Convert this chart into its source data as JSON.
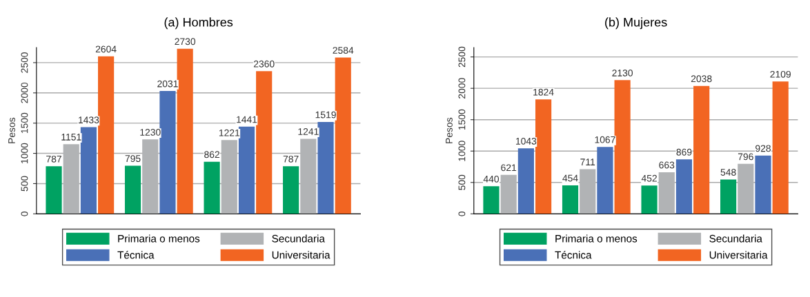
{
  "chart_data": [
    {
      "type": "bar",
      "title": "(a) Hombres",
      "ylabel": "Pesos",
      "categories": [
        null,
        null,
        null,
        null
      ],
      "series": [
        {
          "name": "Primaria o menos",
          "color": "#00a262",
          "values": [
            787,
            795,
            862,
            787
          ]
        },
        {
          "name": "Secundaria",
          "color": "#b1b3b5",
          "values": [
            1151,
            1230,
            1221,
            1241
          ]
        },
        {
          "name": "Técnica",
          "color": "#4a70b7",
          "values": [
            1433,
            2031,
            1441,
            1519
          ]
        },
        {
          "name": "Universitaria",
          "color": "#f26522",
          "values": [
            2604,
            2730,
            2360,
            2584
          ]
        }
      ],
      "ylim": [
        0,
        2750
      ],
      "yticks": [
        0,
        500,
        1000,
        1500,
        2000,
        2500
      ],
      "tick_labels": "y",
      "grid": "y",
      "legend": "bottom",
      "data_labels": true
    },
    {
      "type": "bar",
      "title": "(b) Mujeres",
      "ylabel": "Pesos",
      "categories": [
        null,
        null,
        null,
        null
      ],
      "series": [
        {
          "name": "Primaria o menos",
          "color": "#00a262",
          "values": [
            440,
            454,
            452,
            548
          ]
        },
        {
          "name": "Secundaria",
          "color": "#b1b3b5",
          "values": [
            621,
            711,
            663,
            796
          ]
        },
        {
          "name": "Técnica",
          "color": "#4a70b7",
          "values": [
            1043,
            1067,
            869,
            928
          ]
        },
        {
          "name": "Universitaria",
          "color": "#f26522",
          "values": [
            1824,
            2130,
            2038,
            2109
          ]
        }
      ],
      "ylim": [
        0,
        2650
      ],
      "yticks": [
        0,
        500,
        1000,
        1500,
        2000,
        2500
      ],
      "tick_labels": "y",
      "grid": "y",
      "legend": "bottom",
      "data_labels": true
    }
  ]
}
